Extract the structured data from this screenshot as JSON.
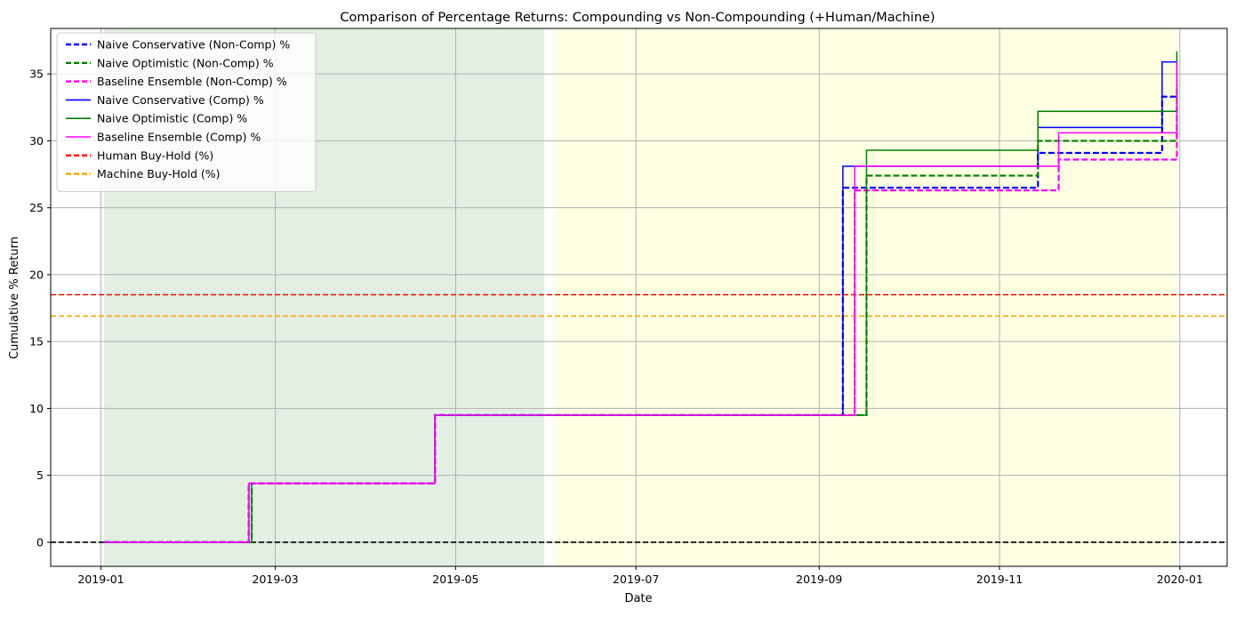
{
  "chart_data": {
    "type": "line",
    "title": "Comparison of Percentage Returns: Compounding vs Non-Compounding (+Human/Machine)",
    "xlabel": "Date",
    "ylabel": "Cumulative % Return",
    "xlim": [
      "2018-12-15",
      "2020-01-17"
    ],
    "ylim": [
      -1.8,
      38.4
    ],
    "x_ticks": [
      "2019-01-01",
      "2019-03-01",
      "2019-05-01",
      "2019-07-01",
      "2019-09-01",
      "2019-11-01",
      "2020-01-01"
    ],
    "x_tick_labels": [
      "2019-01",
      "2019-03",
      "2019-05",
      "2019-07",
      "2019-09",
      "2019-11",
      "2020-01"
    ],
    "y_ticks": [
      0,
      5,
      10,
      15,
      20,
      25,
      30,
      35
    ],
    "y_tick_labels": [
      "0",
      "5",
      "10",
      "15",
      "20",
      "25",
      "30",
      "35"
    ],
    "grid": true,
    "legend_position": "upper-left",
    "shaded_regions": [
      {
        "start": "2019-01-02",
        "end": "2019-05-31",
        "color": "#e4efe4"
      },
      {
        "start": "2019-06-03",
        "end": "2019-12-31",
        "color": "#ffffe4"
      }
    ],
    "series": [
      {
        "name": "Naive Conservative (Non-Comp) %",
        "color": "#0000ff",
        "style": "dashed",
        "width": 2.2,
        "x": [
          "2019-01-02",
          "2019-02-20",
          "2019-04-24",
          "2019-09-09",
          "2019-11-14",
          "2019-12-26",
          "2019-12-31"
        ],
        "y": [
          0,
          4.4,
          9.5,
          26.5,
          29.1,
          33.3,
          33.3
        ]
      },
      {
        "name": "Naive Optimistic (Non-Comp) %",
        "color": "#008000",
        "style": "dashed",
        "width": 2.2,
        "x": [
          "2019-01-02",
          "2019-02-21",
          "2019-04-24",
          "2019-09-17",
          "2019-11-14",
          "2019-12-31"
        ],
        "y": [
          0,
          4.4,
          9.5,
          27.4,
          30.0,
          34.2
        ]
      },
      {
        "name": "Baseline Ensemble (Non-Comp) %",
        "color": "#ff00ff",
        "style": "dashed",
        "width": 2.2,
        "x": [
          "2019-01-02",
          "2019-02-20",
          "2019-04-24",
          "2019-09-13",
          "2019-11-21",
          "2019-12-31"
        ],
        "y": [
          0,
          4.4,
          9.5,
          26.3,
          28.6,
          32.9
        ]
      },
      {
        "name": "Naive Conservative (Comp) %",
        "color": "#0000ff",
        "style": "solid",
        "width": 1.5,
        "x": [
          "2019-01-02",
          "2019-02-20",
          "2019-04-24",
          "2019-09-09",
          "2019-11-14",
          "2019-12-26",
          "2019-12-31"
        ],
        "y": [
          0,
          4.4,
          9.5,
          28.1,
          31.0,
          35.9,
          35.9
        ]
      },
      {
        "name": "Naive Optimistic (Comp) %",
        "color": "#008000",
        "style": "solid",
        "width": 1.5,
        "x": [
          "2019-01-02",
          "2019-02-21",
          "2019-04-24",
          "2019-09-17",
          "2019-11-14",
          "2019-12-31"
        ],
        "y": [
          0,
          4.4,
          9.5,
          29.3,
          32.2,
          36.7
        ]
      },
      {
        "name": "Baseline Ensemble (Comp) %",
        "color": "#ff00ff",
        "style": "solid",
        "width": 1.5,
        "x": [
          "2019-01-02",
          "2019-02-20",
          "2019-04-24",
          "2019-09-13",
          "2019-11-21",
          "2019-12-31"
        ],
        "y": [
          0,
          4.4,
          9.5,
          28.1,
          30.6,
          35.9
        ]
      }
    ],
    "hlines": [
      {
        "name": "Human Buy-Hold (%)",
        "color": "#ff0000",
        "style": "dashed",
        "y": 18.5,
        "legend": true
      },
      {
        "name": "Machine Buy-Hold (%)",
        "color": "#ffa500",
        "style": "dashed",
        "y": 16.9,
        "legend": true
      },
      {
        "name": "",
        "color": "#000000",
        "style": "dashed",
        "y": 0,
        "legend": false
      }
    ]
  }
}
